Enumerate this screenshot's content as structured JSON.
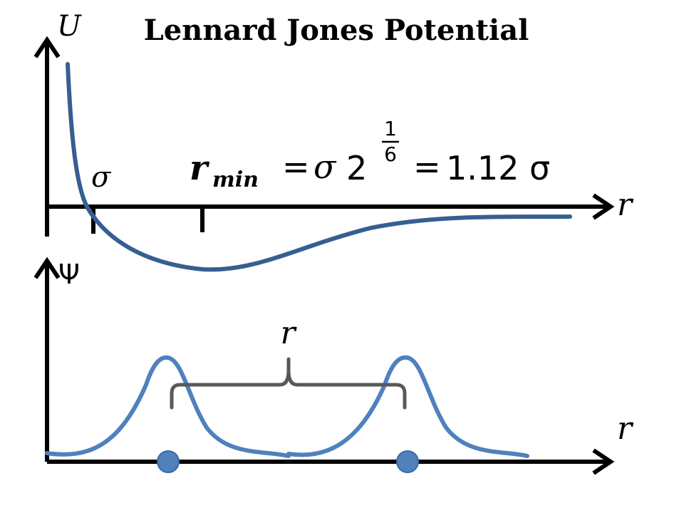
{
  "title": "Lennard Jones Potential",
  "top_plot": {
    "y_axis_label": "U",
    "x_axis_label": "r",
    "sigma_label": "σ",
    "formula": {
      "lhs_symbol": "r",
      "lhs_subscript": "min",
      "equals_1": "=",
      "sigma": "σ",
      "base": "2",
      "exp_numerator": "1",
      "exp_denominator": "6",
      "equals_2": "=",
      "result": "1.12 σ"
    },
    "curve_color": "#365f91"
  },
  "bottom_plot": {
    "y_axis_label": "Ψ",
    "x_axis_label": "r",
    "separation_label": "r",
    "curve_color": "#4f81bd",
    "brace_color": "#595959"
  }
}
